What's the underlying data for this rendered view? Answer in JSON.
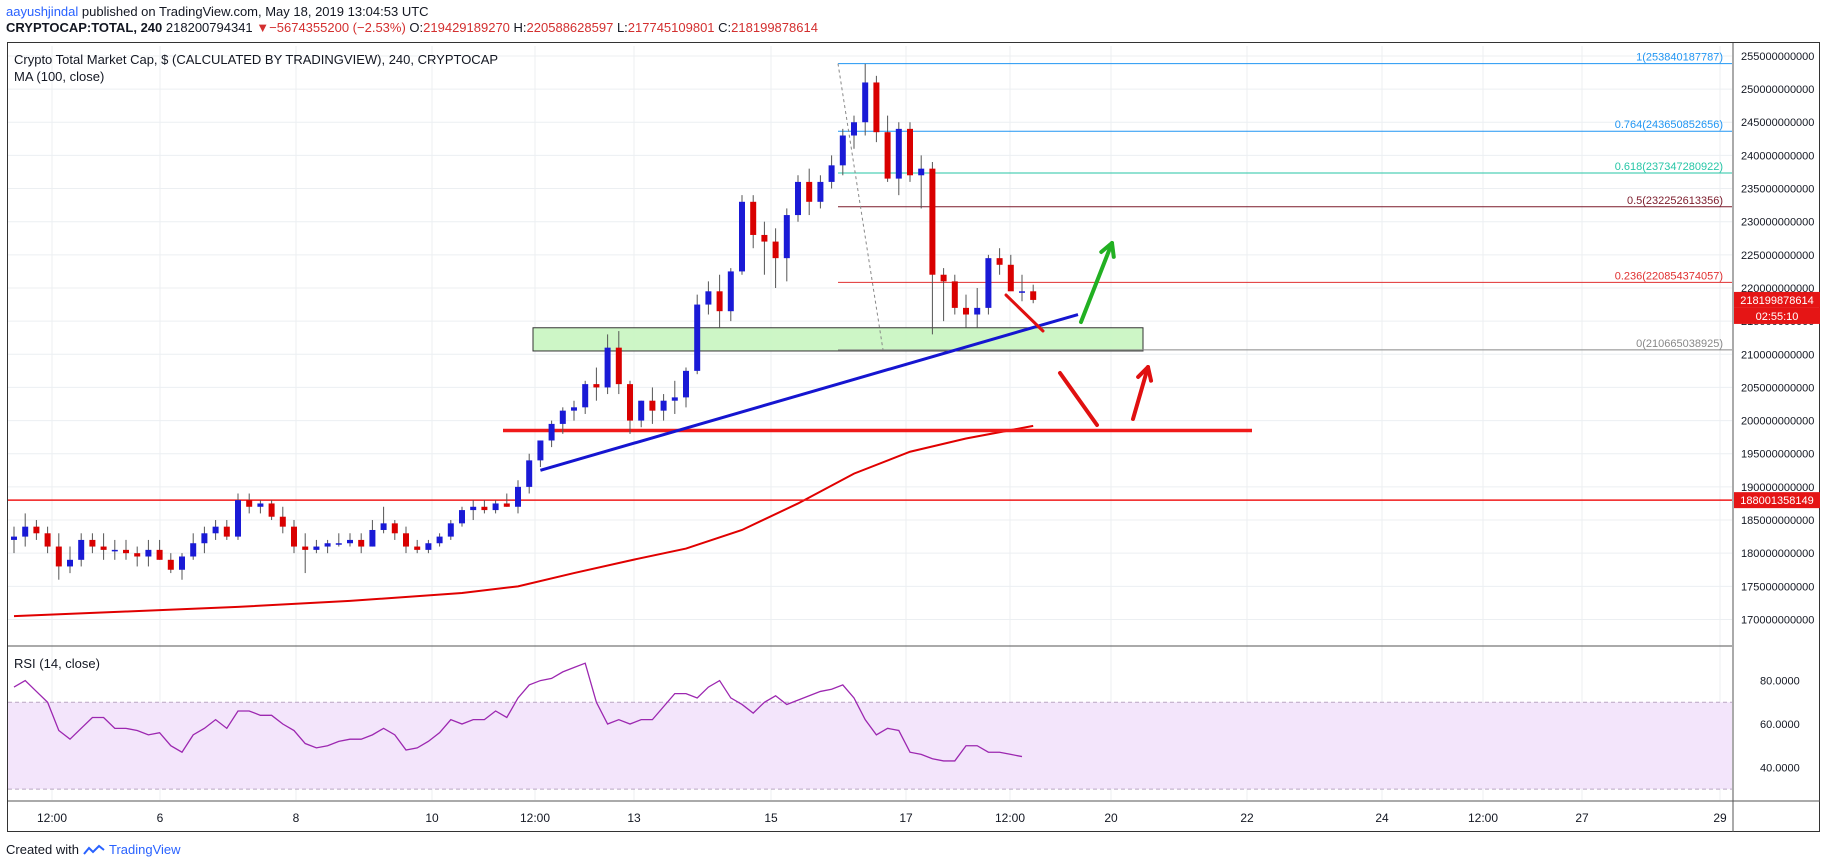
{
  "header": {
    "author": "aayushjindal",
    "published": "published on TradingView.com, May 18, 2019 13:04:53 UTC",
    "symbol": "CRYPTOCAP:TOTAL, 240",
    "last": "218200794341",
    "change_arrow": "▼",
    "change": "−5674355200 (−2.53%)",
    "o_label": "O:",
    "o": "219429189270",
    "h_label": "H:",
    "h": "220588628597",
    "l_label": "L:",
    "l": "217745109801",
    "c_label": "C:",
    "c": "218199878614"
  },
  "legend": {
    "title": "Crypto Total Market Cap, $ (CALCULATED BY TRADINGVIEW), 240, CRYPTOCAP",
    "ma": "MA (100, close)",
    "rsi": "RSI (14, close)"
  },
  "footer": {
    "created_with": "Created with",
    "brand": "TradingView"
  },
  "colors": {
    "up": "#1a1ad6",
    "down": "#d90000",
    "ma": "#e00000",
    "fib_top": "#2196f3",
    "rsi_line": "#9c27b0",
    "rsi_band": "#f3e5fb"
  },
  "chart_data": [
    {
      "type": "candlestick",
      "title": "Crypto Total Market Cap, $ (CALCULATED BY TRADINGVIEW), 240, CRYPTOCAP",
      "x_ticks": [
        "12:00",
        "6",
        "8",
        "10",
        "12:00",
        "13",
        "15",
        "17",
        "12:00",
        "20",
        "22",
        "24",
        "12:00",
        "27",
        "29"
      ],
      "y_ticks": [
        "170000000000",
        "175000000000",
        "180000000000",
        "185000000000",
        "190000000000",
        "195000000000",
        "200000000000",
        "205000000000",
        "210000000000",
        "215000000000",
        "220000000000",
        "225000000000",
        "230000000000",
        "235000000000",
        "240000000000",
        "245000000000",
        "250000000000",
        "255000000000"
      ],
      "ylim": [
        166000000000,
        256500000000
      ],
      "price_labels": {
        "last": "218199878614",
        "countdown": "02:55:10",
        "resistance": "188001358149"
      },
      "candles": [
        {
          "o": 182,
          "h": 184,
          "l": 180,
          "c": 182.5
        },
        {
          "o": 182.5,
          "h": 186,
          "l": 181,
          "c": 184
        },
        {
          "o": 184,
          "h": 185,
          "l": 182,
          "c": 183
        },
        {
          "o": 183,
          "h": 184,
          "l": 180,
          "c": 181
        },
        {
          "o": 181,
          "h": 183,
          "l": 176,
          "c": 178
        },
        {
          "o": 178,
          "h": 181,
          "l": 177,
          "c": 179
        },
        {
          "o": 179,
          "h": 183,
          "l": 178,
          "c": 182
        },
        {
          "o": 182,
          "h": 183,
          "l": 180,
          "c": 181
        },
        {
          "o": 181,
          "h": 183,
          "l": 179,
          "c": 180.5
        },
        {
          "o": 180.5,
          "h": 182,
          "l": 179,
          "c": 180.5
        },
        {
          "o": 180.5,
          "h": 182,
          "l": 179,
          "c": 180
        },
        {
          "o": 180,
          "h": 181,
          "l": 178,
          "c": 179.5
        },
        {
          "o": 179.5,
          "h": 182,
          "l": 178,
          "c": 180.5
        },
        {
          "o": 180.5,
          "h": 182,
          "l": 179,
          "c": 179
        },
        {
          "o": 179,
          "h": 180,
          "l": 177,
          "c": 177.5
        },
        {
          "o": 177.5,
          "h": 180,
          "l": 176,
          "c": 179.5
        },
        {
          "o": 179.5,
          "h": 183,
          "l": 179,
          "c": 181.5
        },
        {
          "o": 181.5,
          "h": 184,
          "l": 180,
          "c": 183
        },
        {
          "o": 183,
          "h": 185,
          "l": 182,
          "c": 184
        },
        {
          "o": 184,
          "h": 185,
          "l": 182,
          "c": 182.5
        },
        {
          "o": 182.5,
          "h": 189,
          "l": 182,
          "c": 188
        },
        {
          "o": 188,
          "h": 189,
          "l": 186,
          "c": 187
        },
        {
          "o": 187,
          "h": 188,
          "l": 186,
          "c": 187.5
        },
        {
          "o": 187.5,
          "h": 188,
          "l": 185,
          "c": 185.5
        },
        {
          "o": 185.5,
          "h": 187,
          "l": 183,
          "c": 184
        },
        {
          "o": 184,
          "h": 185,
          "l": 180,
          "c": 181
        },
        {
          "o": 181,
          "h": 183,
          "l": 177,
          "c": 180.5
        },
        {
          "o": 180.5,
          "h": 182,
          "l": 180,
          "c": 181
        },
        {
          "o": 181,
          "h": 182,
          "l": 180,
          "c": 181.5
        },
        {
          "o": 181.5,
          "h": 183,
          "l": 181,
          "c": 181.5
        },
        {
          "o": 181.5,
          "h": 183,
          "l": 181,
          "c": 182
        },
        {
          "o": 182,
          "h": 183,
          "l": 180,
          "c": 181
        },
        {
          "o": 181,
          "h": 185,
          "l": 181,
          "c": 183.5
        },
        {
          "o": 183.5,
          "h": 187,
          "l": 183,
          "c": 184.5
        },
        {
          "o": 184.5,
          "h": 185,
          "l": 182,
          "c": 183
        },
        {
          "o": 183,
          "h": 184,
          "l": 180,
          "c": 181
        },
        {
          "o": 181,
          "h": 182,
          "l": 180,
          "c": 180.5
        },
        {
          "o": 180.5,
          "h": 182,
          "l": 180,
          "c": 181.5
        },
        {
          "o": 181.5,
          "h": 183,
          "l": 181,
          "c": 182.5
        },
        {
          "o": 182.5,
          "h": 185,
          "l": 182,
          "c": 184.5
        },
        {
          "o": 184.5,
          "h": 187,
          "l": 184,
          "c": 186.5
        },
        {
          "o": 186.5,
          "h": 188,
          "l": 185,
          "c": 187
        },
        {
          "o": 187,
          "h": 188,
          "l": 186,
          "c": 186.5
        },
        {
          "o": 186.5,
          "h": 188,
          "l": 186,
          "c": 187.5
        },
        {
          "o": 187.5,
          "h": 189,
          "l": 187,
          "c": 187
        },
        {
          "o": 187,
          "h": 191,
          "l": 186,
          "c": 190
        },
        {
          "o": 190,
          "h": 195,
          "l": 189,
          "c": 194
        },
        {
          "o": 194,
          "h": 197,
          "l": 193,
          "c": 197
        },
        {
          "o": 197,
          "h": 200,
          "l": 196,
          "c": 199.5
        },
        {
          "o": 199.5,
          "h": 202,
          "l": 198,
          "c": 201.5
        },
        {
          "o": 201.5,
          "h": 203,
          "l": 200,
          "c": 202
        },
        {
          "o": 202,
          "h": 206,
          "l": 201,
          "c": 205.5
        },
        {
          "o": 205.5,
          "h": 208,
          "l": 203,
          "c": 205
        },
        {
          "o": 205,
          "h": 213,
          "l": 204,
          "c": 211
        },
        {
          "o": 211,
          "h": 213.5,
          "l": 204,
          "c": 205.5
        },
        {
          "o": 205.5,
          "h": 206,
          "l": 198,
          "c": 200
        },
        {
          "o": 200,
          "h": 203,
          "l": 199,
          "c": 203
        },
        {
          "o": 203,
          "h": 205,
          "l": 199.5,
          "c": 201.5
        },
        {
          "o": 201.5,
          "h": 204,
          "l": 200,
          "c": 203
        },
        {
          "o": 203,
          "h": 206,
          "l": 201,
          "c": 203.5
        },
        {
          "o": 203.5,
          "h": 208,
          "l": 202,
          "c": 207.5
        },
        {
          "o": 207.5,
          "h": 219,
          "l": 207,
          "c": 217.5
        },
        {
          "o": 217.5,
          "h": 221,
          "l": 216,
          "c": 219.5
        },
        {
          "o": 219.5,
          "h": 222,
          "l": 214,
          "c": 216.5
        },
        {
          "o": 216.5,
          "h": 223,
          "l": 215,
          "c": 222.5
        },
        {
          "o": 222.5,
          "h": 234,
          "l": 222,
          "c": 233
        },
        {
          "o": 233,
          "h": 234,
          "l": 226,
          "c": 228
        },
        {
          "o": 228,
          "h": 230,
          "l": 222,
          "c": 227
        },
        {
          "o": 227,
          "h": 229,
          "l": 220,
          "c": 224.5
        },
        {
          "o": 224.5,
          "h": 232,
          "l": 221,
          "c": 231
        },
        {
          "o": 231,
          "h": 237,
          "l": 230,
          "c": 236
        },
        {
          "o": 236,
          "h": 238,
          "l": 231,
          "c": 233
        },
        {
          "o": 233,
          "h": 237,
          "l": 232,
          "c": 236
        },
        {
          "o": 236,
          "h": 240,
          "l": 235,
          "c": 238.5
        },
        {
          "o": 238.5,
          "h": 244,
          "l": 237,
          "c": 243
        },
        {
          "o": 243,
          "h": 246,
          "l": 241,
          "c": 245
        },
        {
          "o": 245,
          "h": 253.8,
          "l": 243,
          "c": 251
        },
        {
          "o": 251,
          "h": 252,
          "l": 242,
          "c": 243.5
        },
        {
          "o": 243.5,
          "h": 246,
          "l": 236,
          "c": 236.5
        },
        {
          "o": 236.5,
          "h": 245,
          "l": 234,
          "c": 244
        },
        {
          "o": 244,
          "h": 245,
          "l": 236,
          "c": 237
        },
        {
          "o": 237,
          "h": 240,
          "l": 232,
          "c": 238
        },
        {
          "o": 238,
          "h": 239,
          "l": 213,
          "c": 222
        },
        {
          "o": 222,
          "h": 223,
          "l": 215,
          "c": 221
        },
        {
          "o": 221,
          "h": 222,
          "l": 216,
          "c": 217
        },
        {
          "o": 217,
          "h": 219,
          "l": 214,
          "c": 216
        },
        {
          "o": 216,
          "h": 220,
          "l": 214,
          "c": 217
        },
        {
          "o": 217,
          "h": 225,
          "l": 216,
          "c": 224.5
        },
        {
          "o": 224.5,
          "h": 226,
          "l": 222,
          "c": 223.5
        },
        {
          "o": 223.5,
          "h": 225,
          "l": 220,
          "c": 219.5
        },
        {
          "o": 219.5,
          "h": 222,
          "l": 218,
          "c": 219.5
        },
        {
          "o": 219.5,
          "h": 220.5,
          "l": 217.7,
          "c": 218.2
        }
      ],
      "ma_100": [
        {
          "x": 0,
          "y": 170.5
        },
        {
          "x": 10,
          "y": 171.2
        },
        {
          "x": 20,
          "y": 171.9
        },
        {
          "x": 30,
          "y": 172.8
        },
        {
          "x": 40,
          "y": 174
        },
        {
          "x": 45,
          "y": 175
        },
        {
          "x": 50,
          "y": 177
        },
        {
          "x": 55,
          "y": 178.9
        },
        {
          "x": 60,
          "y": 180.7
        },
        {
          "x": 65,
          "y": 183.5
        },
        {
          "x": 70,
          "y": 187.5
        },
        {
          "x": 75,
          "y": 192
        },
        {
          "x": 80,
          "y": 195.3
        },
        {
          "x": 85,
          "y": 197.3
        },
        {
          "x": 91,
          "y": 199.2
        }
      ],
      "fibonacci": [
        {
          "label": "1(253840187787)",
          "value": 253840187787
        },
        {
          "label": "0.764(243650852656)",
          "value": 243650852656
        },
        {
          "label": "0.618(237347280922)",
          "value": 237347280922
        },
        {
          "label": "0.5(232252613356)",
          "value": 232252613356
        },
        {
          "label": "0.236(220854374057)",
          "value": 220854374057
        },
        {
          "label": "0(210665038925)",
          "value": 210665038925
        }
      ],
      "support_zone": {
        "from": 210500000000,
        "to": 214000000000
      },
      "horizontal_lines": [
        {
          "value": 198500000000
        },
        {
          "value": 188001358149
        }
      ],
      "trendline": {
        "from": {
          "x": 47,
          "y": 192.5
        },
        "to": {
          "x": 95,
          "y": 216
        }
      }
    },
    {
      "type": "line",
      "title": "RSI (14, close)",
      "ylim": [
        25,
        95
      ],
      "y_ticks": [
        "40.0000",
        "60.0000",
        "80.0000"
      ],
      "bands": [
        30,
        70
      ],
      "values": [
        77,
        80,
        75,
        70,
        57,
        53,
        58,
        63,
        63,
        58,
        58,
        57,
        55,
        56,
        50,
        47,
        55,
        58,
        62,
        58,
        66,
        66,
        64,
        64,
        60,
        57,
        51,
        49,
        50,
        52,
        53,
        53,
        55,
        58,
        55,
        48,
        49,
        52,
        56,
        62,
        60,
        62,
        62,
        66,
        63,
        72,
        78,
        80,
        81,
        84,
        86,
        88,
        70,
        60,
        62,
        60,
        62,
        62,
        68,
        74,
        74,
        72,
        77,
        80,
        72,
        69,
        65,
        70,
        73,
        69,
        71,
        73,
        75,
        76,
        78,
        72,
        62,
        55,
        58,
        57,
        47,
        46,
        44,
        43,
        43,
        50,
        50,
        47,
        47,
        46,
        45
      ]
    }
  ]
}
